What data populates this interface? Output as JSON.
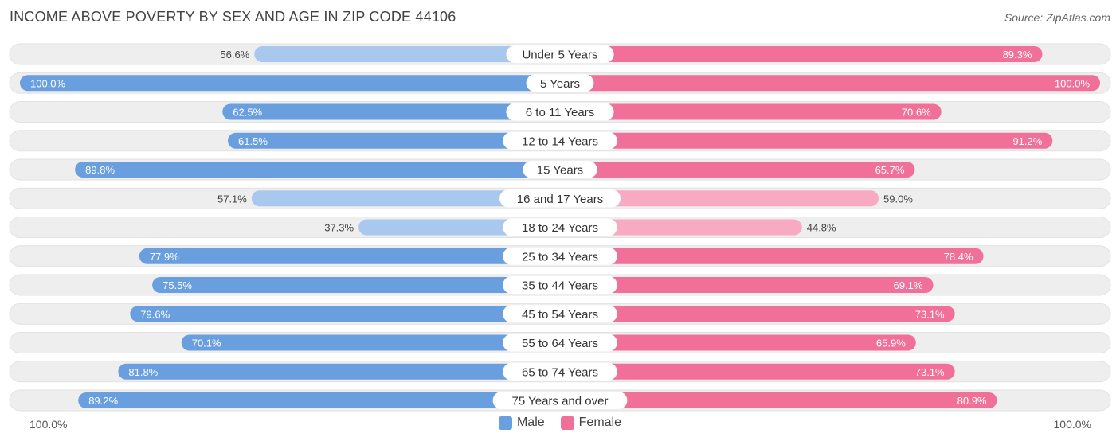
{
  "title": "INCOME ABOVE POVERTY BY SEX AND AGE IN ZIP CODE 44106",
  "source": "Source: ZipAtlas.com",
  "colors": {
    "male": "#6a9fdf",
    "male_light": "#a9c8ee",
    "female": "#f07099",
    "female_light": "#f8aac3",
    "track": "#eeeeee"
  },
  "chart_data": {
    "type": "bar",
    "orientation": "horizontal-diverging",
    "categories": [
      "Under 5 Years",
      "5 Years",
      "6 to 11 Years",
      "12 to 14 Years",
      "15 Years",
      "16 and 17 Years",
      "18 to 24 Years",
      "25 to 34 Years",
      "35 to 44 Years",
      "45 to 54 Years",
      "55 to 64 Years",
      "65 to 74 Years",
      "75 Years and over"
    ],
    "series": [
      {
        "name": "Male",
        "values": [
          56.6,
          100.0,
          62.5,
          61.5,
          89.8,
          57.1,
          37.3,
          77.9,
          75.5,
          79.6,
          70.1,
          81.8,
          89.2
        ]
      },
      {
        "name": "Female",
        "values": [
          89.3,
          100.0,
          70.6,
          91.2,
          65.7,
          59.0,
          44.8,
          78.4,
          69.1,
          73.1,
          65.9,
          73.1,
          80.9
        ]
      }
    ],
    "value_labels": {
      "Male": [
        "56.6%",
        "100.0%",
        "62.5%",
        "61.5%",
        "89.8%",
        "57.1%",
        "37.3%",
        "77.9%",
        "75.5%",
        "79.6%",
        "70.1%",
        "81.8%",
        "89.2%"
      ],
      "Female": [
        "89.3%",
        "100.0%",
        "70.6%",
        "91.2%",
        "65.7%",
        "59.0%",
        "44.8%",
        "78.4%",
        "69.1%",
        "73.1%",
        "65.9%",
        "73.1%",
        "80.9%"
      ]
    },
    "xlim": [
      0,
      100
    ],
    "axis_left_label": "100.0%",
    "axis_right_label": "100.0%",
    "legend": [
      "Male",
      "Female"
    ],
    "legend_position": "bottom-center"
  }
}
